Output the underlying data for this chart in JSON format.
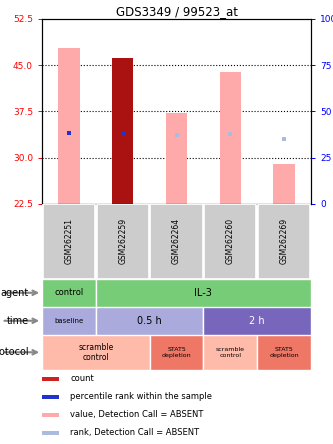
{
  "title": "GDS3349 / 99523_at",
  "samples": [
    "GSM262251",
    "GSM262259",
    "GSM262264",
    "GSM262260",
    "GSM262269"
  ],
  "bar_values": [
    47.8,
    46.2,
    37.3,
    43.8,
    29.0
  ],
  "bar_colors_value": [
    "#ffaaaa",
    "#aa1111",
    "#ffaaaa",
    "#ffaaaa",
    "#ffaaaa"
  ],
  "rank_values": [
    38.5,
    38.5,
    37.3,
    37.5,
    35.0
  ],
  "rank_present": [
    true,
    true,
    false,
    false,
    false
  ],
  "bar_bottom": 22.5,
  "ylim_left": [
    22.5,
    52.5
  ],
  "ylim_right": [
    0,
    100
  ],
  "yticks_left": [
    22.5,
    30.0,
    37.5,
    45.0,
    52.5
  ],
  "yticks_right": [
    0,
    25,
    50,
    75,
    100
  ],
  "dotted_lines": [
    30.0,
    37.5,
    45.0
  ],
  "color_bar_pink": "#ffaaaa",
  "color_bar_red": "#aa1111",
  "color_rank_blue": "#2233cc",
  "color_rank_lightblue": "#aabbdd",
  "color_agent_green": "#77cc77",
  "color_time_light_purple": "#aaaadd",
  "color_time_dark_purple": "#7766bb",
  "color_proto_salmon": "#ffbbaa",
  "color_proto_red": "#ee7766",
  "color_sample_bg": "#cccccc",
  "color_bg_white": "#ffffff",
  "legend_items": [
    [
      "#cc2222",
      "count"
    ],
    [
      "#2233cc",
      "percentile rank within the sample"
    ],
    [
      "#ffaaaa",
      "value, Detection Call = ABSENT"
    ],
    [
      "#aabbdd",
      "rank, Detection Call = ABSENT"
    ]
  ]
}
